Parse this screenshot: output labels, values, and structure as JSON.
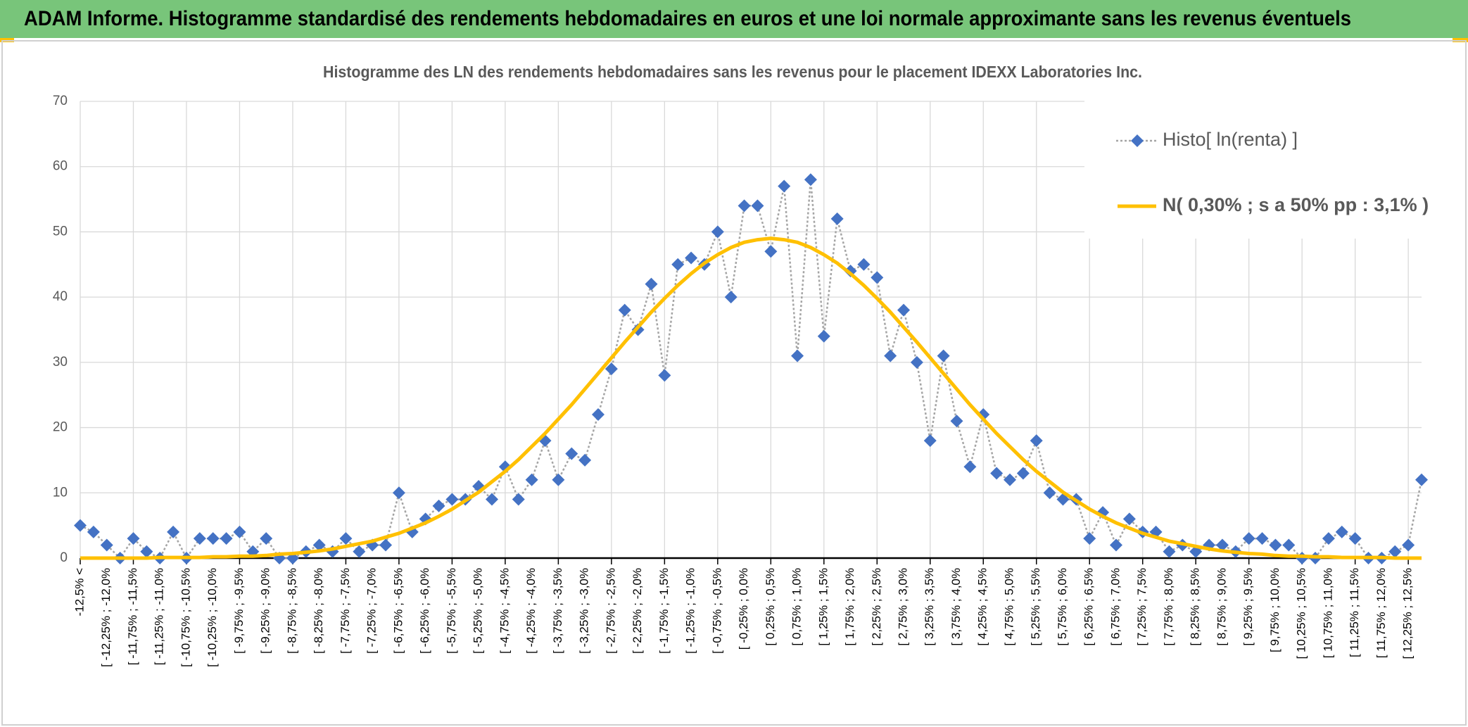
{
  "header": {
    "title": "ADAM Informe. Histogramme standardisé des rendements hebdomadaires en euros et une loi normale approximante sans les revenus éventuels"
  },
  "chart_data": {
    "type": "line",
    "title": "Histogramme des LN des rendements hebdomadaires sans les revenus pour le placement IDEXX Laboratories Inc.",
    "categories": [
      "-12,5% <",
      null,
      "[ -12,25% ; -12,0%",
      null,
      "[ -11,75% ; -11,5%",
      null,
      "[ -11,25% ; -11,0%",
      null,
      "[ -10,75% ; -10,5%",
      null,
      "[ -10,25% ; -10,0%",
      null,
      "[ -9,75% ; -9,5%",
      null,
      "[ -9,25% ; -9,0%",
      null,
      "[ -8,75% ; -8,5%",
      null,
      "[ -8,25% ; -8,0%",
      null,
      "[ -7,75% ; -7,5%",
      null,
      "[ -7,25% ; -7,0%",
      null,
      "[ -6,75% ; -6,5%",
      null,
      "[ -6,25% ; -6,0%",
      null,
      "[ -5,75% ; -5,5%",
      null,
      "[ -5,25% ; -5,0%",
      null,
      "[ -4,75% ; -4,5%",
      null,
      "[ -4,25% ; -4,0%",
      null,
      "[ -3,75% ; -3,5%",
      null,
      "[ -3,25% ; -3,0%",
      null,
      "[ -2,75% ; -2,5%",
      null,
      "[ -2,25% ; -2,0%",
      null,
      "[ -1,75% ; -1,5%",
      null,
      "[ -1,25% ; -1,0%",
      null,
      "[ -0,75% ; -0,5%",
      null,
      "[ -0,25% ; 0,0%",
      null,
      "[ 0,25% ; 0,5%",
      null,
      "[ 0,75% ; 1,0%",
      null,
      "[ 1,25% ; 1,5%",
      null,
      "[ 1,75% ; 2,0%",
      null,
      "[ 2,25% ; 2,5%",
      null,
      "[ 2,75% ; 3,0%",
      null,
      "[ 3,25% ; 3,5%",
      null,
      "[ 3,75% ; 4,0%",
      null,
      "[ 4,25% ; 4,5%",
      null,
      "[ 4,75% ; 5,0%",
      null,
      "[ 5,25% ; 5,5%",
      null,
      "[ 5,75% ; 6,0%",
      null,
      "[ 6,25% ; 6,5%",
      null,
      "[ 6,75% ; 7,0%",
      null,
      "[ 7,25% ; 7,5%",
      null,
      "[ 7,75% ; 8,0%",
      null,
      "[ 8,25% ; 8,5%",
      null,
      "[ 8,75% ; 9,0%",
      null,
      "[ 9,25% ; 9,5%",
      null,
      "[ 9,75% ; 10,0%",
      null,
      "[ 10,25% ; 10,5%",
      null,
      "[ 10,75% ; 11,0%",
      null,
      "[ 11,25% ; 11,5%",
      null,
      "[ 11,75% ; 12,0%",
      null,
      "[ 12,25% ; 12,5%",
      null
    ],
    "series": [
      {
        "name": "Histo[ ln(renta) ]",
        "color": "#4472c4",
        "line_color": "#a5a5a5",
        "values": [
          5,
          4,
          2,
          0,
          3,
          1,
          0,
          4,
          0,
          3,
          3,
          3,
          4,
          1,
          3,
          0,
          0,
          1,
          2,
          1,
          3,
          1,
          2,
          2,
          10,
          4,
          6,
          8,
          9,
          9,
          11,
          9,
          14,
          9,
          12,
          18,
          12,
          16,
          15,
          22,
          29,
          38,
          35,
          42,
          28,
          45,
          46,
          45,
          50,
          40,
          54,
          54,
          47,
          57,
          31,
          58,
          34,
          52,
          44,
          45,
          43,
          31,
          38,
          30,
          18,
          31,
          21,
          14,
          22,
          13,
          12,
          13,
          18,
          10,
          9,
          9,
          3,
          7,
          2,
          6,
          4,
          4,
          1,
          2,
          1,
          2,
          2,
          1,
          3,
          3,
          2,
          2,
          0,
          0,
          3,
          4,
          3,
          0,
          0,
          1,
          2,
          12
        ]
      },
      {
        "name": "N( 0,30% ; s a 50% pp : 3,1% )",
        "color": "#ffc000",
        "values": [
          0,
          0,
          0,
          0,
          0,
          0,
          0.1,
          0.1,
          0.1,
          0.1,
          0.2,
          0.2,
          0.3,
          0.3,
          0.4,
          0.6,
          0.7,
          0.9,
          1.1,
          1.4,
          1.8,
          2.2,
          2.6,
          3.2,
          3.8,
          4.6,
          5.4,
          6.4,
          7.5,
          8.8,
          10.1,
          11.7,
          13.3,
          15.1,
          17.1,
          19.1,
          21.3,
          23.5,
          25.9,
          28.3,
          30.7,
          33.1,
          35.4,
          37.7,
          39.8,
          41.8,
          43.6,
          45.2,
          46.5,
          47.6,
          48.4,
          48.8,
          49.0,
          48.8,
          48.4,
          47.6,
          46.5,
          45.2,
          43.6,
          41.8,
          39.8,
          37.7,
          35.4,
          33.1,
          30.7,
          28.3,
          25.9,
          23.5,
          21.3,
          19.1,
          17.1,
          15.1,
          13.3,
          11.7,
          10.1,
          8.8,
          7.5,
          6.4,
          5.4,
          4.6,
          3.8,
          3.2,
          2.6,
          2.2,
          1.8,
          1.4,
          1.1,
          0.9,
          0.7,
          0.6,
          0.4,
          0.3,
          0.3,
          0.2,
          0.2,
          0.1,
          0.1,
          0.1,
          0.1,
          0,
          0,
          0
        ]
      }
    ],
    "ylim": [
      0,
      70
    ],
    "yticks": [
      0,
      10,
      20,
      30,
      40,
      50,
      60,
      70
    ],
    "grid": true,
    "legend": "upper right"
  }
}
